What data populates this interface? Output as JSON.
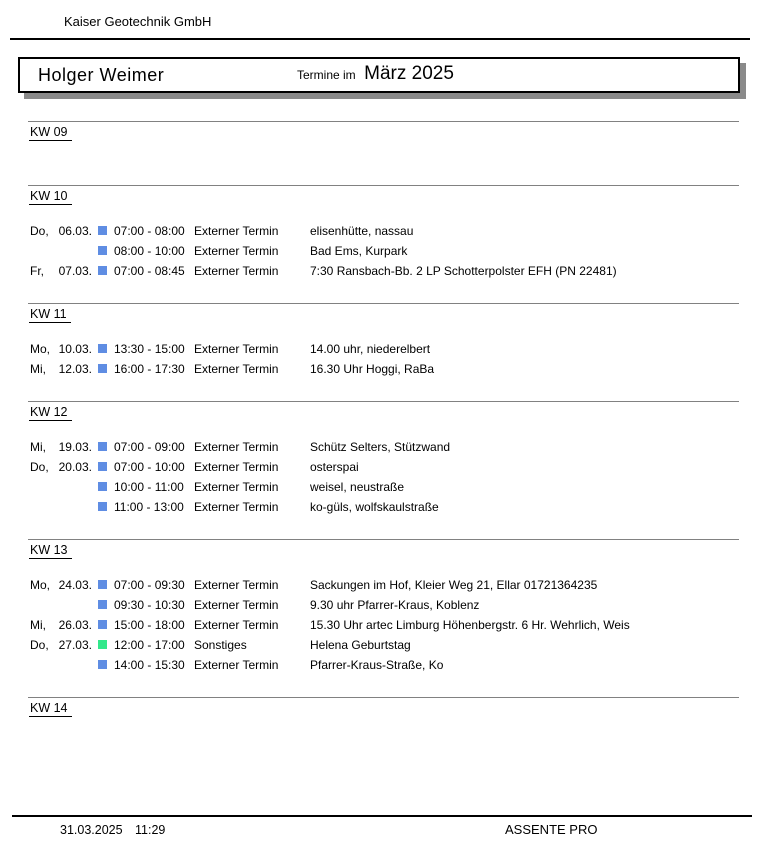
{
  "header": {
    "company": "Kaiser Geotechnik GmbH"
  },
  "title": {
    "person": "Holger Weimer",
    "prefix": "Termine im",
    "month": "März 2025"
  },
  "colors": {
    "extern": "#5F8DE3",
    "sonstiges": "#33E88B"
  },
  "weeks": [
    {
      "label": "KW 09",
      "entries": []
    },
    {
      "label": "KW 10",
      "entries": [
        {
          "day": "Do,",
          "date": "06.03.",
          "color": "extern",
          "time": "07:00 - 08:00",
          "type": "Externer Termin",
          "desc": "elisenhütte, nassau"
        },
        {
          "day": "",
          "date": "",
          "color": "extern",
          "time": "08:00 - 10:00",
          "type": "Externer Termin",
          "desc": "Bad Ems, Kurpark"
        },
        {
          "day": "Fr,",
          "date": "07.03.",
          "color": "extern",
          "time": "07:00 - 08:45",
          "type": "Externer Termin",
          "desc": "7:30 Ransbach-Bb. 2 LP Schotterpolster EFH (PN 22481)"
        }
      ]
    },
    {
      "label": "KW 11",
      "entries": [
        {
          "day": "Mo,",
          "date": "10.03.",
          "color": "extern",
          "time": "13:30 - 15:00",
          "type": "Externer Termin",
          "desc": "14.00 uhr, niederelbert"
        },
        {
          "day": "Mi,",
          "date": "12.03.",
          "color": "extern",
          "time": "16:00 - 17:30",
          "type": "Externer Termin",
          "desc": "16.30 Uhr Hoggi, RaBa"
        }
      ]
    },
    {
      "label": "KW 12",
      "entries": [
        {
          "day": "Mi,",
          "date": "19.03.",
          "color": "extern",
          "time": "07:00 - 09:00",
          "type": "Externer Termin",
          "desc": "Schütz Selters, Stützwand"
        },
        {
          "day": "Do,",
          "date": "20.03.",
          "color": "extern",
          "time": "07:00 - 10:00",
          "type": "Externer Termin",
          "desc": "osterspai"
        },
        {
          "day": "",
          "date": "",
          "color": "extern",
          "time": "10:00 - 11:00",
          "type": "Externer Termin",
          "desc": "weisel, neustraße"
        },
        {
          "day": "",
          "date": "",
          "color": "extern",
          "time": "11:00 - 13:00",
          "type": "Externer Termin",
          "desc": "ko-güls, wolfskaulstraße"
        }
      ]
    },
    {
      "label": "KW 13",
      "entries": [
        {
          "day": "Mo,",
          "date": "24.03.",
          "color": "extern",
          "time": "07:00 - 09:30",
          "type": "Externer Termin",
          "desc": "Sackungen im Hof, Kleier Weg 21, Ellar 01721364235"
        },
        {
          "day": "",
          "date": "",
          "color": "extern",
          "time": "09:30 - 10:30",
          "type": "Externer Termin",
          "desc": "9.30 uhr Pfarrer-Kraus, Koblenz"
        },
        {
          "day": "Mi,",
          "date": "26.03.",
          "color": "extern",
          "time": "15:00 - 18:00",
          "type": "Externer Termin",
          "desc": "15.30 Uhr artec Limburg Höhenbergstr. 6 Hr. Wehrlich, Weis"
        },
        {
          "day": "Do,",
          "date": "27.03.",
          "color": "sonstiges",
          "time": "12:00 - 17:00",
          "type": "Sonstiges",
          "desc": "Helena Geburtstag"
        },
        {
          "day": "",
          "date": "",
          "color": "extern",
          "time": "14:00 - 15:30",
          "type": "Externer Termin",
          "desc": "Pfarrer-Kraus-Straße, Ko"
        }
      ]
    },
    {
      "label": "KW 14",
      "entries": []
    }
  ],
  "footer": {
    "date": "31.03.2025",
    "time": "11:29",
    "app": "ASSENTE PRO"
  }
}
